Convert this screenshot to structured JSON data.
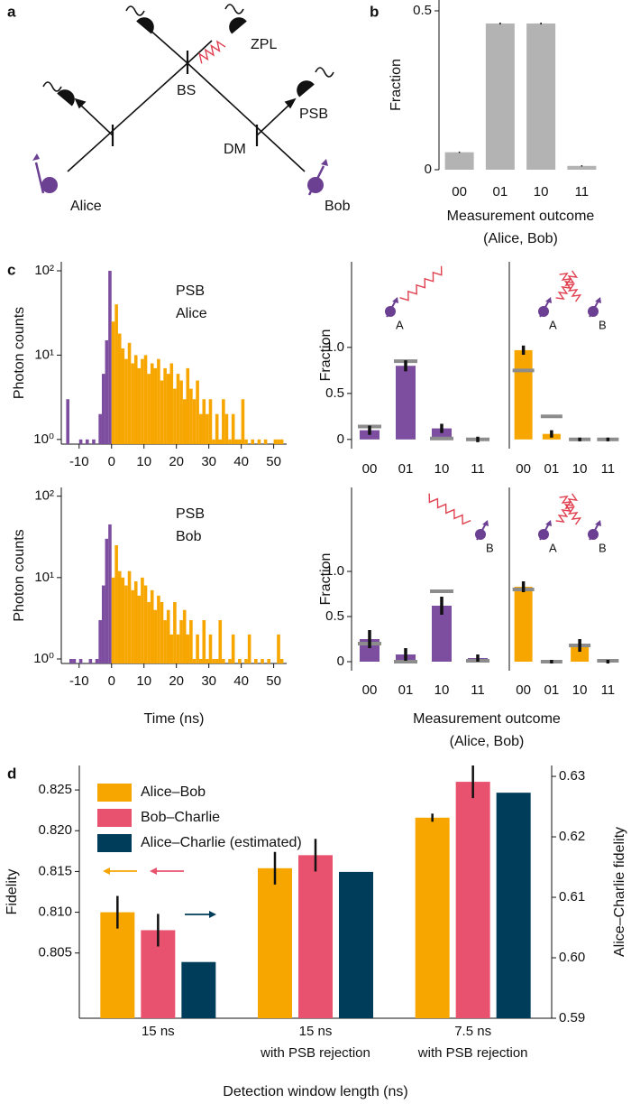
{
  "panel_labels": [
    "a",
    "b",
    "c",
    "d"
  ],
  "diagram": {
    "labels": [
      "Alice",
      "Bob",
      "BS",
      "DM",
      "PSB",
      "ZPL"
    ]
  },
  "chart_data": [
    {
      "type": "bar",
      "categories": [
        "00",
        "01",
        "10",
        "11"
      ],
      "values": [
        0.055,
        0.46,
        0.46,
        0.012
      ],
      "errors": [
        0.002,
        0.003,
        0.003,
        0.002
      ],
      "color": "#b3b3b3",
      "ylim": [
        0,
        0.534
      ],
      "yticks": [
        0,
        0.5
      ],
      "ylabel": "Fraction",
      "xlabel": [
        "Measurement outcome",
        "(Alice, Bob)"
      ]
    },
    {
      "type": "histogram",
      "log_y": true,
      "ylim": [
        0.88,
        128
      ],
      "xlim": [
        -15.5,
        54
      ],
      "yticks": [
        {
          "value": 1,
          "label": "10⁰"
        },
        {
          "value": 10,
          "label": "10¹"
        },
        {
          "value": 100,
          "label": "10²"
        }
      ],
      "xticks": [
        -10,
        0,
        10,
        20,
        30,
        40,
        50
      ],
      "ylabel": "Photon counts",
      "annotation": [
        "PSB",
        "Alice"
      ],
      "series": [
        {
          "color": "#7d4e9f",
          "bins": [
            -15,
            -14,
            -13,
            -12,
            -11,
            -10,
            -9,
            -8,
            -7,
            -6,
            -5,
            -4,
            -3,
            -2,
            -1,
            0
          ],
          "values": [
            0,
            3,
            0,
            0,
            0,
            1,
            0,
            1,
            0,
            1,
            0,
            2,
            6,
            15,
            100
          ]
        },
        {
          "color": "#f7a600",
          "bins": [
            0,
            1,
            2,
            3,
            4,
            5,
            6,
            7,
            8,
            9,
            10,
            11,
            12,
            13,
            14,
            15,
            16,
            17,
            18,
            19,
            20,
            21,
            22,
            23,
            24,
            25,
            26,
            27,
            28,
            29,
            30,
            31,
            32,
            33,
            34,
            35,
            36,
            37,
            38,
            39,
            40,
            41,
            42,
            43,
            44,
            45,
            46,
            47,
            48,
            49,
            50,
            51,
            52,
            53,
            54
          ],
          "values": [
            25,
            40,
            18,
            12,
            9,
            14,
            8,
            10,
            7,
            9,
            10,
            6,
            8,
            7,
            9,
            5,
            7,
            6,
            8,
            4,
            6,
            5,
            3,
            7,
            4,
            3,
            5,
            2,
            3,
            2,
            3,
            1,
            2,
            1,
            3,
            2,
            1,
            2,
            1,
            1,
            3,
            1,
            0,
            1,
            0,
            1,
            0,
            1,
            0,
            0,
            1,
            1,
            1,
            0
          ]
        }
      ]
    },
    {
      "type": "histogram",
      "log_y": true,
      "ylim": [
        0.88,
        128
      ],
      "xlim": [
        -15.5,
        54
      ],
      "yticks": [
        {
          "value": 1,
          "label": "10⁰"
        },
        {
          "value": 10,
          "label": "10¹"
        },
        {
          "value": 100,
          "label": "10²"
        }
      ],
      "xticks": [
        -10,
        0,
        10,
        20,
        30,
        40,
        50
      ],
      "ylabel": "Photon counts",
      "xlabel": [
        "Time (ns)"
      ],
      "annotation": [
        "PSB",
        "Bob"
      ],
      "series": [
        {
          "color": "#7d4e9f",
          "bins": [
            -15,
            -14,
            -13,
            -12,
            -11,
            -10,
            -9,
            -8,
            -7,
            -6,
            -5,
            -4,
            -3,
            -2,
            -1,
            0
          ],
          "values": [
            0,
            0,
            1,
            1,
            0,
            1,
            0,
            0,
            1,
            0,
            1,
            3,
            8,
            30,
            45
          ]
        },
        {
          "color": "#f7a600",
          "bins": [
            0,
            1,
            2,
            3,
            4,
            5,
            6,
            7,
            8,
            9,
            10,
            11,
            12,
            13,
            14,
            15,
            16,
            17,
            18,
            19,
            20,
            21,
            22,
            23,
            24,
            25,
            26,
            27,
            28,
            29,
            30,
            31,
            32,
            33,
            34,
            35,
            36,
            37,
            38,
            39,
            40,
            41,
            42,
            43,
            44,
            45,
            46,
            47,
            48,
            49,
            50,
            51,
            52,
            53,
            54
          ],
          "values": [
            10,
            25,
            12,
            10,
            8,
            12,
            7,
            9,
            6,
            10,
            8,
            5,
            7,
            4,
            6,
            5,
            3,
            4,
            2,
            5,
            2,
            3,
            4,
            2,
            3,
            1,
            2,
            1,
            3,
            1,
            2,
            1,
            1,
            3,
            1,
            0,
            1,
            2,
            0,
            1,
            0,
            1,
            2,
            0,
            1,
            0,
            1,
            0,
            1,
            0,
            0,
            2,
            1,
            0
          ]
        }
      ]
    },
    {
      "type": "bar",
      "categories": [
        "00",
        "01",
        "10",
        "11"
      ],
      "values": [
        0.1,
        0.8,
        0.12,
        0.0
      ],
      "errors": [
        0.05,
        0.06,
        0.05,
        0.03
      ],
      "reference": [
        0.14,
        0.85,
        0.01,
        0.0
      ],
      "reference_color": "#8c8c8c",
      "color": "#7d4e9f",
      "ylim": [
        -0.1,
        1.93
      ],
      "yticks": [
        0,
        0.5,
        {
          "value": 1,
          "label": "1.0"
        }
      ],
      "ylabel": "Fraction",
      "icon_labels": [
        "A"
      ]
    },
    {
      "type": "bar",
      "categories": [
        "00",
        "01",
        "10",
        "11"
      ],
      "values": [
        0.97,
        0.06,
        0.0,
        0.0
      ],
      "errors": [
        0.05,
        0.04,
        0.02,
        0.02
      ],
      "reference": [
        0.75,
        0.25,
        0.0,
        0.0
      ],
      "reference_color": "#8c8c8c",
      "color": "#f7a600",
      "ylim": [
        -0.1,
        1.93
      ],
      "icon_labels": [
        "A",
        "B"
      ]
    },
    {
      "type": "bar",
      "categories": [
        "00",
        "01",
        "10",
        "11"
      ],
      "values": [
        0.25,
        0.08,
        0.62,
        0.04
      ],
      "errors": [
        0.1,
        0.07,
        0.1,
        0.04
      ],
      "reference": [
        0.2,
        0.0,
        0.78,
        0.01
      ],
      "reference_color": "#8c8c8c",
      "color": "#7d4e9f",
      "ylim": [
        -0.1,
        1.93
      ],
      "yticks": [
        0,
        0.5,
        {
          "value": 1,
          "label": "1.0"
        }
      ],
      "ylabel": "Fraction",
      "xlabel": [
        "Measurement outcome",
        "(Alice, Bob)"
      ],
      "icon_labels": [
        "B"
      ]
    },
    {
      "type": "bar",
      "categories": [
        "00",
        "01",
        "10",
        "11"
      ],
      "values": [
        0.83,
        0.0,
        0.18,
        0.0
      ],
      "errors": [
        0.06,
        0.02,
        0.07,
        0.02
      ],
      "reference": [
        0.8,
        0.0,
        0.18,
        0.01
      ],
      "reference_color": "#8c8c8c",
      "color": "#f7a600",
      "ylim": [
        -0.1,
        1.93
      ],
      "icon_labels": [
        "A",
        "B"
      ]
    },
    {
      "type": "bar",
      "categories": [
        [
          "15 ns"
        ],
        [
          "15 ns",
          "with PSB rejection"
        ],
        [
          "7.5 ns",
          "with PSB rejection"
        ]
      ],
      "series": [
        {
          "name": "Alice–Bob",
          "color": "#f7a600",
          "values": [
            0.81,
            0.8154,
            0.8216
          ],
          "errors": [
            0.002,
            0.002,
            0.0005
          ]
        },
        {
          "name": "Bob–Charlie",
          "color": "#e8526e",
          "values": [
            0.8078,
            0.817,
            0.826
          ],
          "errors": [
            0.002,
            0.002,
            0.002
          ]
        },
        {
          "name": "Alice–Charlie (estimated)",
          "color": "#003d5b",
          "values": [
            0.5993,
            0.6142,
            0.6273
          ],
          "axis": "y2"
        }
      ],
      "ylim": [
        0.797,
        0.828
      ],
      "yticks": [
        0.805,
        {
          "value": 0.81,
          "label": "0.810"
        },
        0.815,
        {
          "value": 0.82,
          "label": "0.820"
        },
        0.825
      ],
      "y2lim": [
        0.59,
        0.6318
      ],
      "y2ticks": [
        0.59,
        {
          "value": 0.6,
          "label": "0.60"
        },
        0.61,
        0.62,
        0.63
      ],
      "ylabel": "Fidelity",
      "y2label": "Alice–Charlie fidelity",
      "xlabel": [
        "Detection window length (ns)"
      ],
      "legend": "upper left"
    }
  ]
}
